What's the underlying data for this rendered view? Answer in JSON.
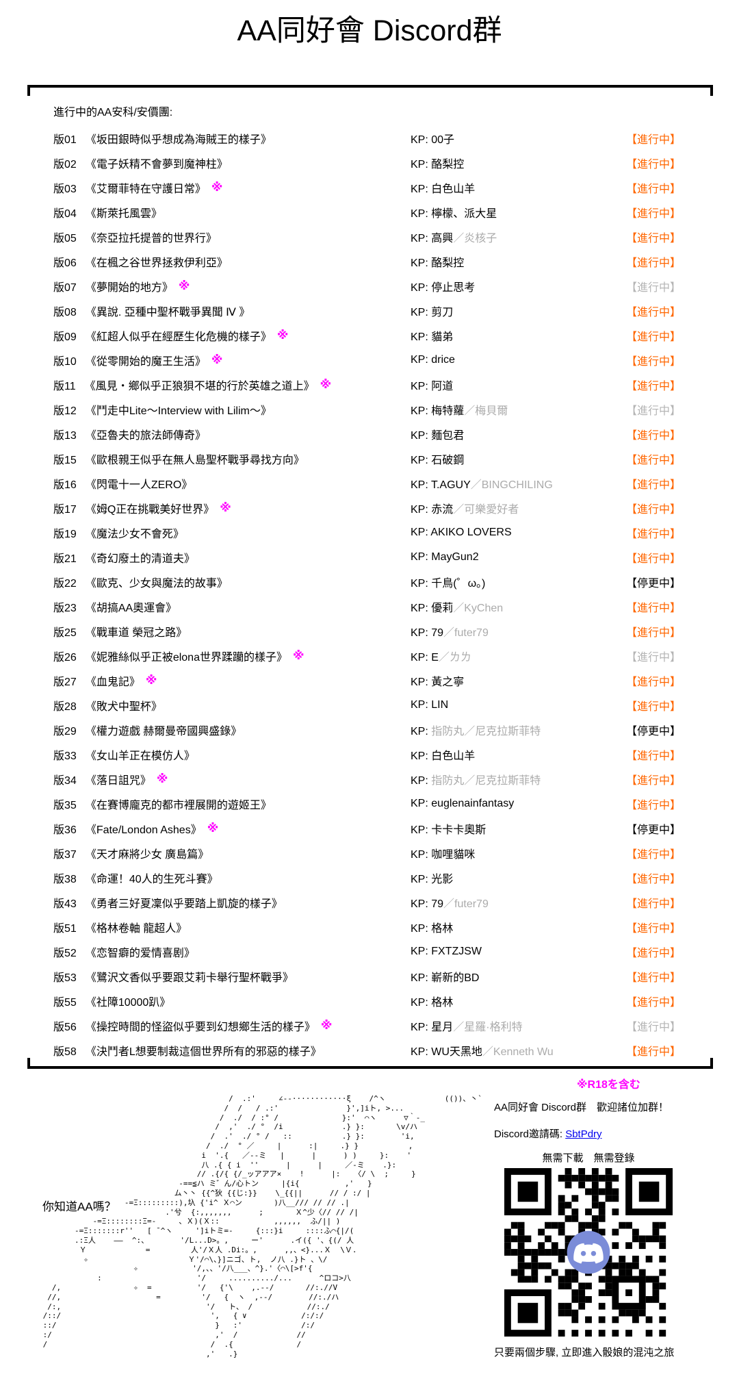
{
  "page": {
    "title": "AA同好會 Discord群"
  },
  "list": {
    "heading": "進行中的AA安科/安價團:",
    "kp_prefix": "KP: ",
    "kp_separator": "／",
    "r18_mark": "※",
    "status_labels": {
      "a": "【進行中】",
      "p": "【進行中】",
      "x": "【停更中】"
    },
    "rows": [
      {
        "num": "版01",
        "title": "《坂田銀時似乎想成為海賊王的樣子》",
        "kp1": "00子",
        "st": "a"
      },
      {
        "num": "版02",
        "title": "《電子妖精不會夢到魔神柱》",
        "kp1": "酪梨控",
        "st": "a"
      },
      {
        "num": "版03",
        "title": "《艾爾菲特在守護日常》",
        "star": true,
        "kp1": "白色山羊",
        "st": "a"
      },
      {
        "num": "版04",
        "title": "《斯萊托風雲》",
        "kp1": "檸檬、派大星",
        "st": "a"
      },
      {
        "num": "版05",
        "title": "《奈亞拉托提普的世界行》",
        "kp1": "高興",
        "kp2": "炎核子",
        "st": "a"
      },
      {
        "num": "版06",
        "title": "《在楓之谷世界拯救伊利亞》",
        "kp1": "酪梨控",
        "st": "a"
      },
      {
        "num": "版07",
        "title": "《夢開始的地方》",
        "star": true,
        "kp1": "停止思考",
        "st": "p"
      },
      {
        "num": "版08",
        "title": "《異說. 亞種中聖杯戰爭異聞 Ⅳ 》",
        "kp1": "剪刀",
        "st": "a"
      },
      {
        "num": "版09",
        "title": "《紅超人似乎在經歷生化危機的樣子》",
        "star": true,
        "kp1": "貓弟",
        "st": "a"
      },
      {
        "num": "版10",
        "title": "《從零開始的魔王生活》",
        "star": true,
        "kp1": "drice",
        "st": "a"
      },
      {
        "num": "版11",
        "title": "《風見・鄉似乎正狼狽不堪的行於英雄之道上》",
        "star": true,
        "kp1": "阿道",
        "st": "a"
      },
      {
        "num": "版12",
        "title": "《鬥走中Lite～Interview with Lilim～》",
        "kp1": "梅特蘿",
        "kp2": "梅貝爾",
        "st": "p"
      },
      {
        "num": "版13",
        "title": "《亞魯夫的旅法師傳奇》",
        "kp1": "麵包君",
        "st": "a"
      },
      {
        "num": "版15",
        "title": "《歐根親王似乎在無人島聖杯戰爭尋找方向》",
        "kp1": "石破鋼",
        "st": "a"
      },
      {
        "num": "版16",
        "title": "《閃電十一人ZERO》",
        "kp1": "T.AGUY",
        "kp2": "BINGCHILING",
        "st": "a"
      },
      {
        "num": "版17",
        "title": "《姆Q正在挑戰美好世界》",
        "star": true,
        "kp1": "赤流",
        "kp2": "可樂愛好者",
        "st": "a"
      },
      {
        "num": "版19",
        "title": "《魔法少女不會死》",
        "kp1": "AKIKO LOVERS",
        "st": "a"
      },
      {
        "num": "版21",
        "title": "《奇幻廢土的清道夫》",
        "kp1": "MayGun2",
        "st": "a"
      },
      {
        "num": "版22",
        "title": "《歐克、少女與魔法的故事》",
        "kp1": "千鳥(゜ω。)",
        "st": "x"
      },
      {
        "num": "版23",
        "title": "《胡搞AA奧運會》",
        "kp1": "優莉",
        "kp2": "KyChen",
        "st": "a"
      },
      {
        "num": "版25",
        "title": "《戰車道 榮冠之路》",
        "kp1": "79",
        "kp2": "futer79",
        "st": "a"
      },
      {
        "num": "版26",
        "title": "《妮雅絲似乎正被elona世界蹂躪的樣子》",
        "star": true,
        "kp1": "E",
        "kp2": "ㄌㄌ",
        "st": "p"
      },
      {
        "num": "版27",
        "title": "《血鬼記》",
        "star": true,
        "kp1": "黃之寧",
        "st": "a"
      },
      {
        "num": "版28",
        "title": "《敗犬中聖杯》",
        "kp1": "LIN",
        "st": "a"
      },
      {
        "num": "版29",
        "title": "《權力遊戲 赫爾曼帝國興盛錄》",
        "kp1": "指防丸",
        "kp2": "尼克拉斯菲特",
        "muted": true,
        "st": "x"
      },
      {
        "num": "版33",
        "title": "《女山羊正在模仿人》",
        "kp1": "白色山羊",
        "st": "a"
      },
      {
        "num": "版34",
        "title": "《落日詛咒》",
        "star": true,
        "kp1": "指防丸",
        "kp2": "尼克拉斯菲特",
        "muted": true,
        "st": "a"
      },
      {
        "num": "版35",
        "title": "《在賽博龐克的都市裡展開的遊姬王》",
        "kp1": "euglenainfantasy",
        "st": "a"
      },
      {
        "num": "版36",
        "title": "《Fate/London Ashes》",
        "star": true,
        "kp1": "卡卡卡奧斯",
        "st": "x"
      },
      {
        "num": "版37",
        "title": "《天才麻將少女 廣島篇》",
        "kp1": "咖哩貓咪",
        "st": "a"
      },
      {
        "num": "版38",
        "title": "《命運！40人的生死斗賽》",
        "kp1": "光影",
        "st": "a"
      },
      {
        "num": "版43",
        "title": "《勇者三好夏凜似乎要踏上凱旋的樣子》",
        "kp1": "79",
        "kp2": "futer79",
        "st": "a"
      },
      {
        "num": "版51",
        "title": "《格林卷軸 龍超人》",
        "kp1": "格林",
        "st": "a"
      },
      {
        "num": "版52",
        "title": "《恋智癖的爱情喜剧》",
        "kp1": "FXTZJSW",
        "st": "a"
      },
      {
        "num": "版53",
        "title": "《鷺沢文香似乎要跟艾莉卡舉行聖杯戰爭》",
        "kp1": "嶄新的BD",
        "st": "a"
      },
      {
        "num": "版55",
        "title": "《社障10000趴》",
        "kp1": "格林",
        "st": "a"
      },
      {
        "num": "版56",
        "title": "《操控時間的怪盜似乎要到幻想鄉生活的樣子》",
        "star": true,
        "kp1": "星月",
        "kp2": "星羅·格利特",
        "st": "p"
      },
      {
        "num": "版58",
        "title": "《決鬥者L想要制裁這個世界所有的邪惡的樣子》",
        "kp1": "WU天黑地",
        "kp2": "Kenneth Wu",
        "st": "a"
      }
    ]
  },
  "footer": {
    "r18_note": "※R18を含む",
    "aa_question": "你知道AA嗎？",
    "welcome": "AA同好會 Discord群　歡迎諸位加群！",
    "invite_label": "Discord邀請碼: ",
    "invite_code": "SbtPdry",
    "no_requirements": "無需下載　無需登錄",
    "qr_caption": "只要兩個步驟, 立即進入骰娘的混沌之旅",
    "ascii_art": [
      "                                          /  .:'     ∠--············ξ    /^ヽ             (())、丶`",
      "                                         /  /   / .:'               }',]iト, >...",
      "                                        /  ./  / :° /              }:'  ⌒ヽ      ▽｀‐_",
      "                                       /  ,'  ./ °  /i             .} }:       \\v/ハ",
      "                                      /  .'  ./ ° /   ::           .} }:        'i,",
      "                                     /  ./  ° ／     |      :|     .} }           ,",
      "                                    i  '.{   ／--ミ   |      |      ) )     }:    '",
      "                                    八 .{ { i  ''      |      |     ／-ミ    .}:",
      "                                   // .{/{ {/_ッアアア×    !      |:   〈/ \\  ;     }",
      "                               -==≦ハ ミ゛ん/心トン     |{i{          ,'   }",
      "                              ム丶丶 {{^狄 {{じ:}}    \\_{{||      // / :/ |",
      "                   -=Ξ:::::::::),圦 {'i^ Ｘ⌒ン       )八__/// // // .|",
      "                            .'兮  {:,,,,,,,      ;       Ｘ^少〈// // /|",
      "            -=Ξ::::::::Ξ=-     、Ｘ)(Ｘ::            ,,,,,,  ふ/|| )",
      "        -=Ξ:::::::r''   [ ̄ ^ヽ     ']iトミ=-     {:::}i     ::::ふ⌒{|/(",
      "        .:Ξ人    ――  ^:、       '/L...D>。,     ー'      .イ({ '、{(/ 人",
      "         Ｙ             =         人'/Ｘ人 .Di:。,      ,,、<}...Ｘ  \\Ｖ.",
      "          ✧                      Ｙ'/⌒\\、}]ニゴ、ト,  ノ八 .}ト 、\\/",
      "                     ✧            '/,、、'/八___、^}.'〈⌒\\[>f'{",
      "             :                     '/     ........../...      ^ロコ>八",
      "   /,                ✧  =          '/   {'\\    ,.-‐/       //:.//V",
      "  //,                     =         '/   {  ヽ  ,--/        //:./ハ",
      "  /:,                                '/   ト、 /            //:./",
      " /::/                                 ',   { ∨            /:/:/",
      " ::/                                   }   :'             /:/",
      " :/                                    ,'  /             //",
      " /                                    /  .{              /",
      "                                     ,'   .}"
    ]
  },
  "colors": {
    "accent_orange": "#ff6600",
    "muted_gray": "#ababab",
    "magenta": "#ff00ff",
    "link_blue": "#0000ee",
    "discord_blurple": "#7b8cd8",
    "status_stopped": "#000000"
  }
}
